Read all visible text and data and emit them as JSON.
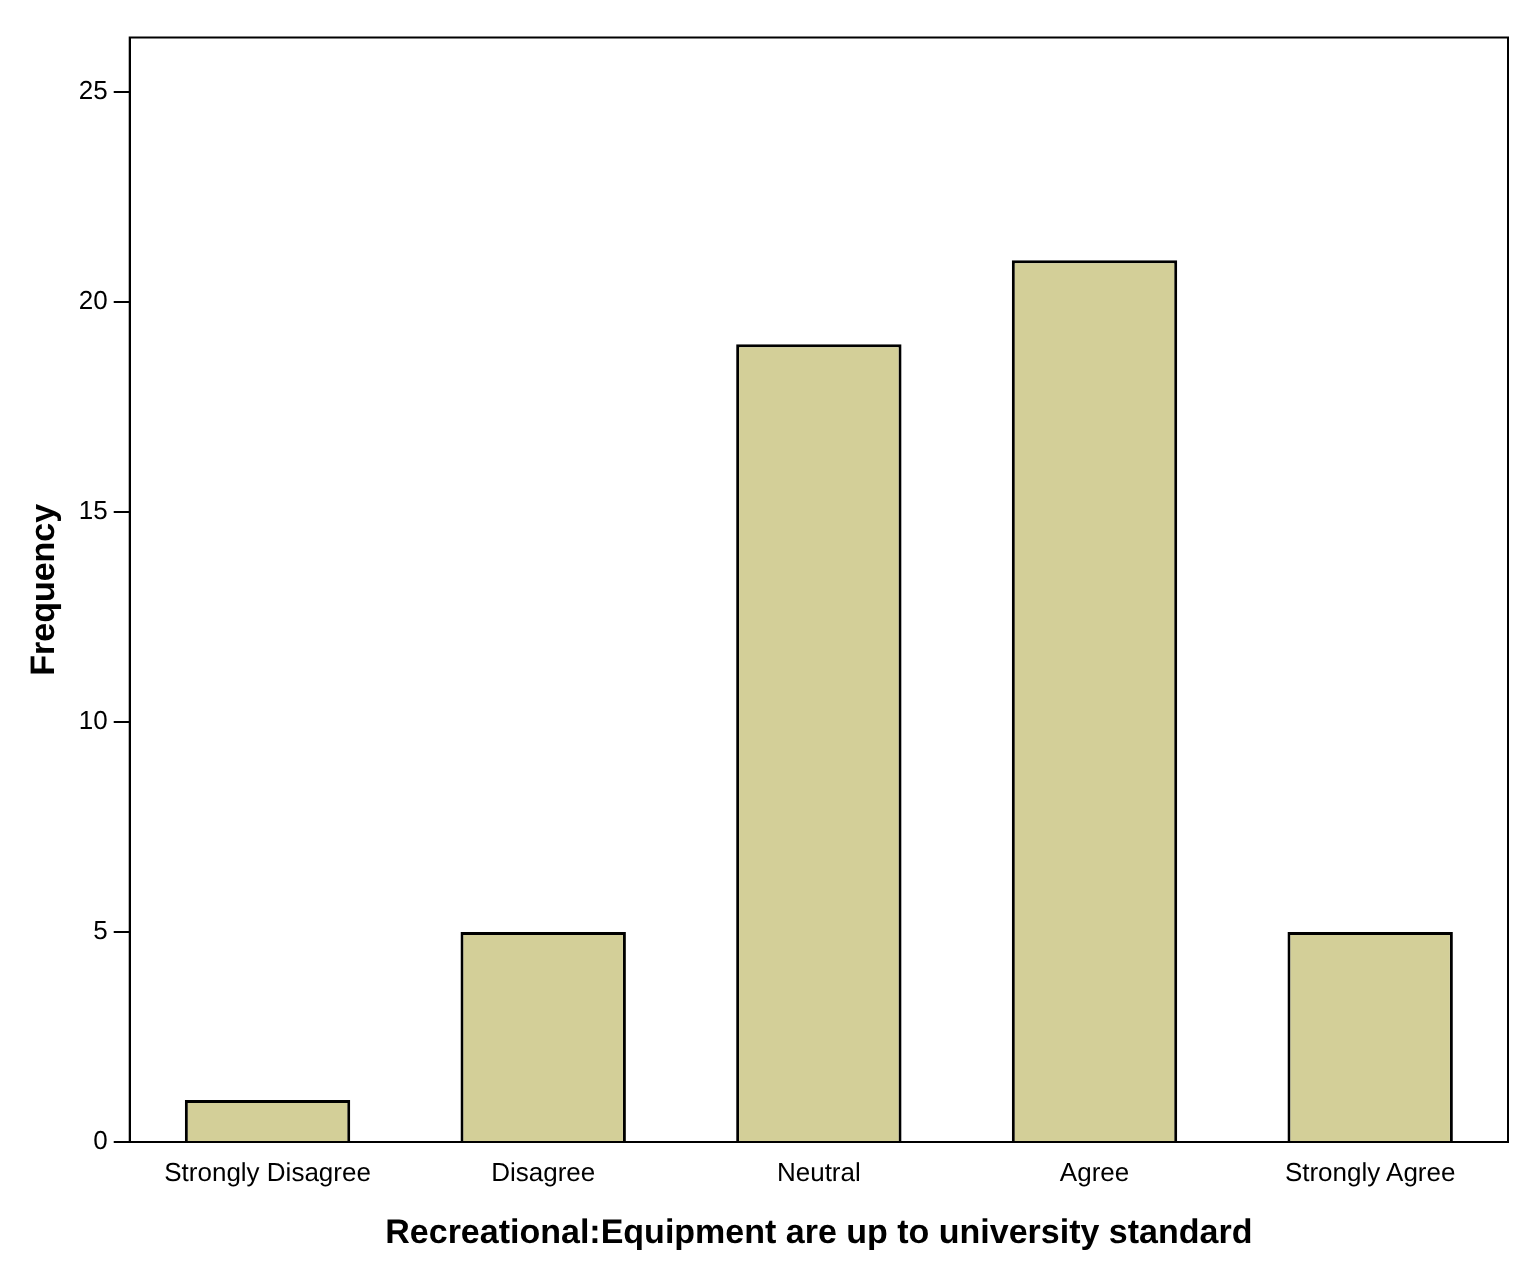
{
  "chart_data": {
    "type": "bar",
    "xlabel": "Recreational:Equipment are up to university standard",
    "ylabel": "Frequency",
    "categories": [
      "Strongly Disagree",
      "Disagree",
      "Neutral",
      "Agree",
      "Strongly Agree"
    ],
    "values": [
      1,
      5,
      19,
      21,
      5
    ],
    "color": "#d3cf98",
    "ylim": [
      0,
      26.3
    ],
    "yticks": [
      0,
      5,
      10,
      15,
      20,
      25
    ],
    "grid": false,
    "legend": false
  }
}
